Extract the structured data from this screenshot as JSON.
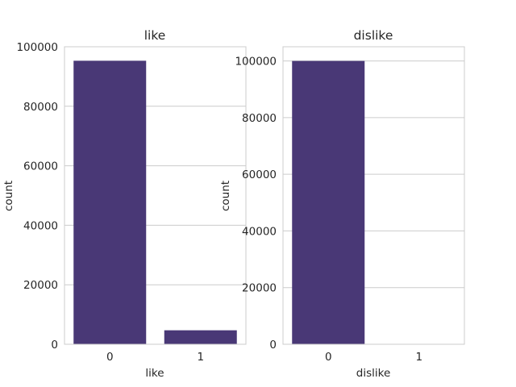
{
  "colors": {
    "bar": "#493876",
    "grid": "#cccccc",
    "text": "#262626",
    "background": "#ffffff"
  },
  "chart_data": [
    {
      "type": "bar",
      "title": "like",
      "xlabel": "like",
      "ylabel": "count",
      "categories": [
        "0",
        "1"
      ],
      "values": [
        95300,
        4700
      ],
      "ylim": [
        0,
        100000
      ],
      "yticks": [
        0,
        20000,
        40000,
        60000,
        80000,
        100000
      ],
      "grid": true
    },
    {
      "type": "bar",
      "title": "dislike",
      "xlabel": "dislike",
      "ylabel": "count",
      "categories": [
        "0",
        "1"
      ],
      "values": [
        100000,
        0
      ],
      "ylim": [
        0,
        105000
      ],
      "yticks": [
        0,
        20000,
        40000,
        60000,
        80000,
        100000
      ],
      "grid": true
    }
  ]
}
